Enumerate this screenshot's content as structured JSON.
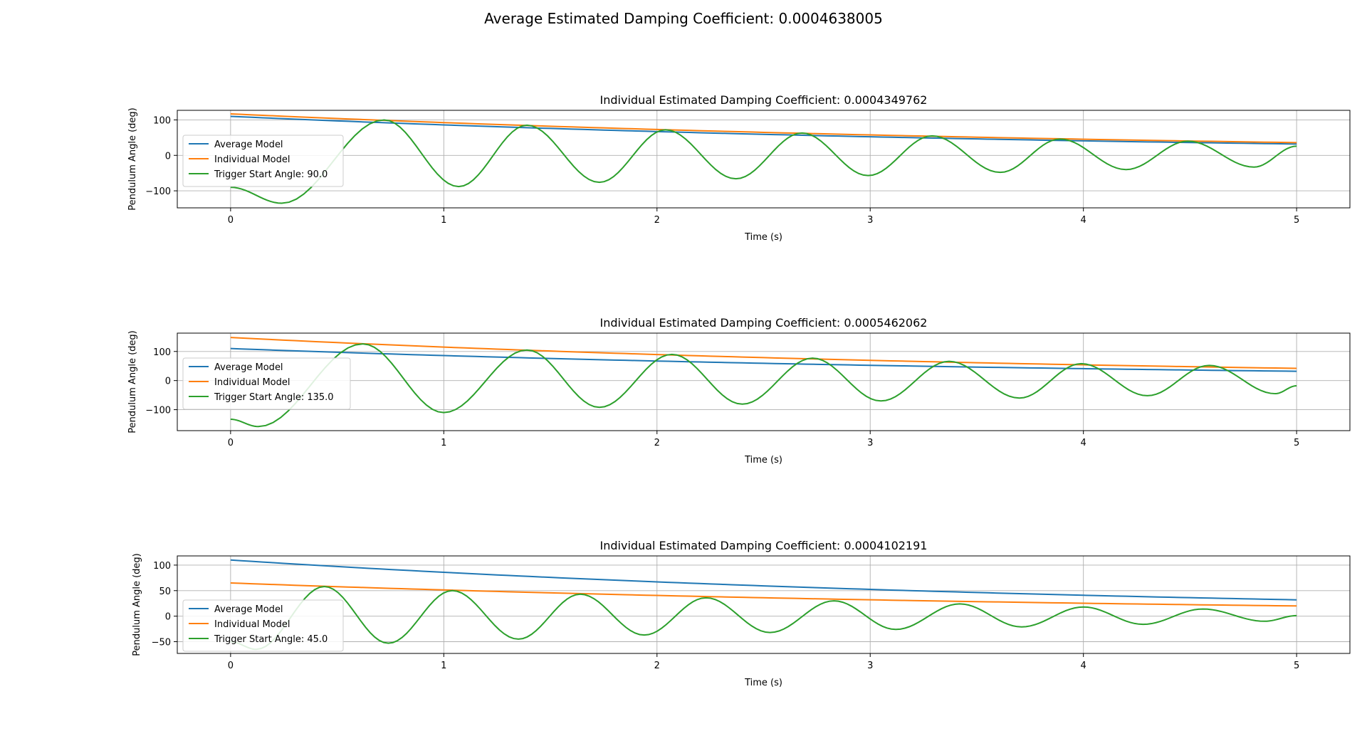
{
  "suptitle": "Average Estimated Damping Coefficient: 0.0004638005",
  "colors": {
    "average_model": "#1f77b4",
    "individual_model": "#ff7f0e",
    "trigger": "#2ca02c",
    "grid": "#b0b0b0"
  },
  "chart_data": [
    {
      "type": "line",
      "title": "Individual Estimated Damping Coefficient: 0.0004349762",
      "xlabel": "Time (s)",
      "ylabel": "Pendulum Angle (deg)",
      "xlim": [
        -0.25,
        5.25
      ],
      "ylim": [
        -148,
        127
      ],
      "xticks": [
        0,
        1,
        2,
        3,
        4,
        5
      ],
      "yticks": [
        -100,
        0,
        100
      ],
      "grid": true,
      "legend_position": "center-left",
      "series": [
        {
          "name": "Average Model",
          "color": "#1f77b4",
          "kind": "decay",
          "y0": 110,
          "y5": 32
        },
        {
          "name": "Individual Model",
          "color": "#ff7f0e",
          "kind": "decay",
          "y0": 117,
          "y5": 36
        },
        {
          "name": "Trigger Start Angle: 90.0",
          "color": "#2ca02c",
          "kind": "oscillation",
          "x": [
            0,
            0.24,
            0.72,
            1.07,
            1.39,
            1.73,
            2.04,
            2.37,
            2.68,
            2.99,
            3.29,
            3.61,
            3.89,
            4.2,
            4.49,
            4.8,
            5
          ],
          "y": [
            -90,
            -135,
            100,
            -88,
            85,
            -76,
            72,
            -66,
            63,
            -57,
            55,
            -48,
            46,
            -40,
            40,
            -33,
            26
          ]
        }
      ]
    },
    {
      "type": "line",
      "title": "Individual Estimated Damping Coefficient: 0.0005462062",
      "xlabel": "Time (s)",
      "ylabel": "Pendulum Angle (deg)",
      "xlim": [
        -0.25,
        5.25
      ],
      "ylim": [
        -172,
        163
      ],
      "xticks": [
        0,
        1,
        2,
        3,
        4,
        5
      ],
      "yticks": [
        -100,
        0,
        100
      ],
      "grid": true,
      "legend_position": "center-left",
      "series": [
        {
          "name": "Average Model",
          "color": "#1f77b4",
          "kind": "decay",
          "y0": 110,
          "y5": 32
        },
        {
          "name": "Individual Model",
          "color": "#ff7f0e",
          "kind": "decay",
          "y0": 148,
          "y5": 42
        },
        {
          "name": "Trigger Start Angle: 135.0",
          "color": "#2ca02c",
          "kind": "oscillation",
          "x": [
            0,
            0.13,
            0.62,
            1.0,
            1.39,
            1.73,
            2.07,
            2.4,
            2.73,
            3.05,
            3.37,
            3.7,
            3.99,
            4.3,
            4.59,
            4.9,
            5
          ],
          "y": [
            -133,
            -158,
            126,
            -110,
            105,
            -92,
            90,
            -81,
            77,
            -70,
            66,
            -60,
            58,
            -52,
            52,
            -45,
            -18
          ]
        }
      ]
    },
    {
      "type": "line",
      "title": "Individual Estimated Damping Coefficient: 0.0004102191",
      "xlabel": "Time (s)",
      "ylabel": "Pendulum Angle (deg)",
      "xlim": [
        -0.25,
        5.25
      ],
      "ylim": [
        -73,
        118
      ],
      "xticks": [
        0,
        1,
        2,
        3,
        4,
        5
      ],
      "yticks": [
        -50,
        0,
        50,
        100
      ],
      "grid": true,
      "legend_position": "lower-left",
      "series": [
        {
          "name": "Average Model",
          "color": "#1f77b4",
          "kind": "decay",
          "y0": 110,
          "y5": 32
        },
        {
          "name": "Individual Model",
          "color": "#ff7f0e",
          "kind": "decay",
          "y0": 65,
          "y5": 20
        },
        {
          "name": "Trigger Start Angle: 45.0",
          "color": "#2ca02c",
          "kind": "oscillation",
          "x": [
            0,
            0.12,
            0.44,
            0.74,
            1.04,
            1.35,
            1.64,
            1.94,
            2.23,
            2.53,
            2.83,
            3.12,
            3.42,
            3.71,
            4.0,
            4.28,
            4.56,
            4.85,
            5
          ],
          "y": [
            -50,
            -65,
            58,
            -53,
            50,
            -45,
            43,
            -37,
            36,
            -32,
            30,
            -26,
            24,
            -21,
            18,
            -16,
            14,
            -10,
            1
          ]
        }
      ]
    }
  ]
}
